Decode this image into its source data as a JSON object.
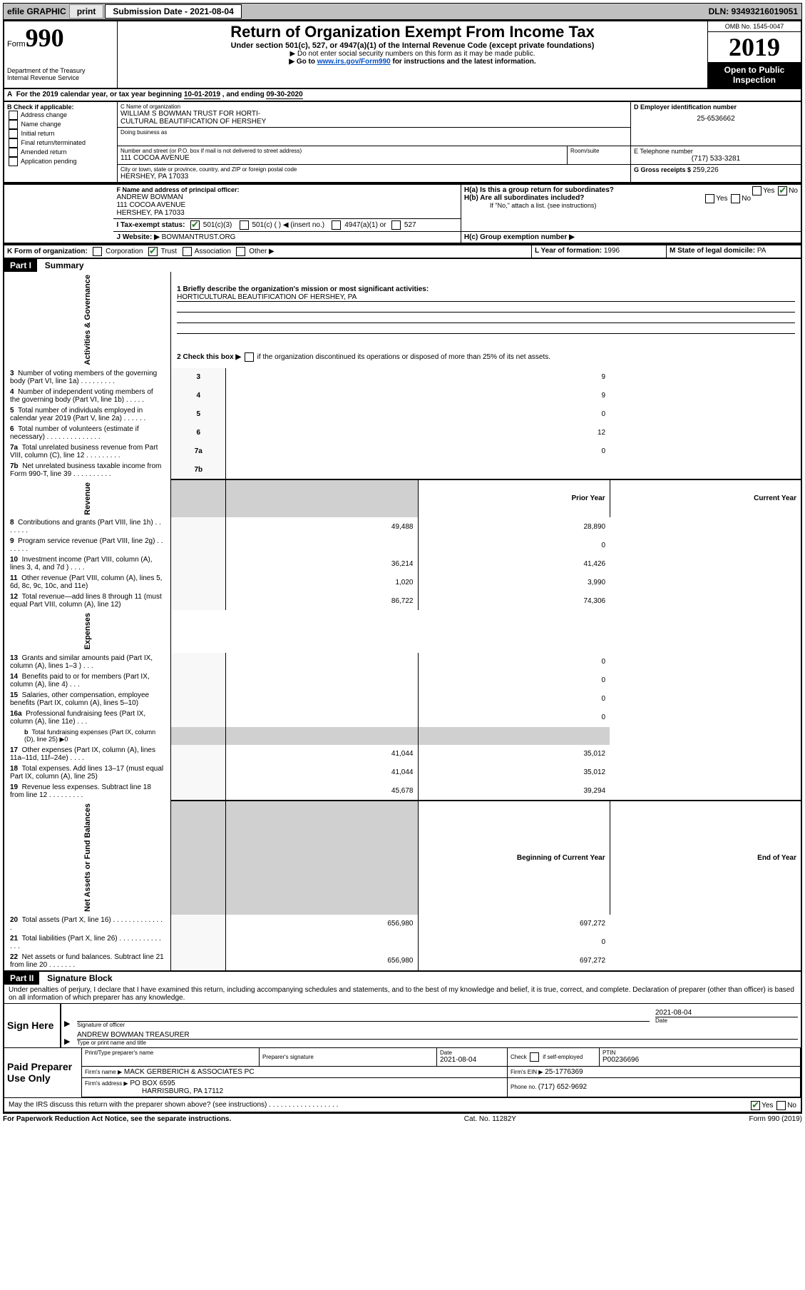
{
  "header_bar": {
    "efile_label": "efile GRAPHIC",
    "print_btn": "print",
    "submission_label": "Submission Date - 2021-08-04",
    "dln_label": "DLN: 93493216019051"
  },
  "top": {
    "form_prefix": "Form",
    "form_number": "990",
    "dept": "Department of the Treasury",
    "irs": "Internal Revenue Service",
    "title": "Return of Organization Exempt From Income Tax",
    "subtitle": "Under section 501(c), 527, or 4947(a)(1) of the Internal Revenue Code (except private foundations)",
    "note1": "▶ Do not enter social security numbers on this form as it may be made public.",
    "note2_prefix": "▶ Go to ",
    "note2_link": "www.irs.gov/Form990",
    "note2_suffix": " for instructions and the latest information.",
    "omb": "OMB No. 1545-0047",
    "year": "2019",
    "open_public": "Open to Public Inspection"
  },
  "periodA": {
    "text_prefix": "For the 2019 calendar year, or tax year beginning ",
    "begin": "10-01-2019",
    "mid": "  , and ending ",
    "end": "09-30-2020"
  },
  "boxB": {
    "label": "B Check if applicable:",
    "items": [
      "Address change",
      "Name change",
      "Initial return",
      "Final return/terminated",
      "Amended return",
      "Application pending"
    ]
  },
  "boxC": {
    "name_label": "C Name of organization",
    "name1": "WILLIAM S BOWMAN TRUST FOR HORTI-",
    "name2": "CULTURAL BEAUTIFICATION OF HERSHEY",
    "dba_label": "Doing business as",
    "street_label": "Number and street (or P.O. box if mail is not delivered to street address)",
    "room_label": "Room/suite",
    "street": "111 COCOA AVENUE",
    "city_label": "City or town, state or province, country, and ZIP or foreign postal code",
    "city": "HERSHEY, PA  17033"
  },
  "boxD": {
    "label": "D Employer identification number",
    "ein": "25-6536662"
  },
  "boxE": {
    "label": "E Telephone number",
    "phone": "(717) 533-3281"
  },
  "boxG": {
    "label": "G Gross receipts $ ",
    "value": "259,226"
  },
  "boxF": {
    "label": "F  Name and address of principal officer:",
    "name": "ANDREW BOWMAN",
    "addr1": "111 COCOA AVENUE",
    "addr2": "HERSHEY, PA  17033"
  },
  "boxH": {
    "a_label": "H(a)  Is this a group return for subordinates?",
    "b_label": "H(b)  Are all subordinates included?",
    "b_note": "If \"No,\" attach a list. (see instructions)",
    "c_label": "H(c)  Group exemption number ▶",
    "yes": "Yes",
    "no": "No"
  },
  "boxI": {
    "label": "I  Tax-exempt status:",
    "c3": "501(c)(3)",
    "c_other": "501(c) (  ) ◀ (insert no.)",
    "a4947": "4947(a)(1) or",
    "s527": "527"
  },
  "boxJ": {
    "label": "J  Website: ▶",
    "value": "BOWMANTRUST.ORG"
  },
  "boxK": {
    "label": "K Form of organization:",
    "corp": "Corporation",
    "trust": "Trust",
    "assoc": "Association",
    "other": "Other ▶"
  },
  "boxL": {
    "label": "L Year of formation: ",
    "value": "1996"
  },
  "boxM": {
    "label": "M State of legal domicile: ",
    "value": "PA"
  },
  "part1": {
    "header": "Part I",
    "title": "Summary",
    "line1_label": "1   Briefly describe the organization's mission or most significant activities:",
    "line1_value": "HORTICULTURAL BEAUTIFICATION OF HERSHEY, PA",
    "line2_label": "2   Check this box ▶",
    "line2_suffix": " if the organization discontinued its operations or disposed of more than 25% of its net assets.",
    "sections": {
      "gov": "Activities & Governance",
      "rev": "Revenue",
      "exp": "Expenses",
      "net": "Net Assets or Fund Balances"
    },
    "gov_rows": [
      {
        "n": "3",
        "label": "Number of voting members of the governing body (Part VI, line 1a)   .   .   .   .   .   .   .   .   .",
        "val": "9"
      },
      {
        "n": "4",
        "label": "Number of independent voting members of the governing body (Part VI, line 1b)   .   .   .   .   .",
        "val": "9"
      },
      {
        "n": "5",
        "label": "Total number of individuals employed in calendar year 2019 (Part V, line 2a)   .   .   .   .   .   .",
        "val": "0"
      },
      {
        "n": "6",
        "label": "Total number of volunteers (estimate if necessary)   .   .   .   .   .   .   .   .   .   .   .   .   .   .",
        "val": "12"
      },
      {
        "n": "7a",
        "label": "Total unrelated business revenue from Part VIII, column (C), line 12   .   .   .   .   .   .   .   .   .",
        "val": "0"
      },
      {
        "n": "7b",
        "label": "Net unrelated business taxable income from Form 990-T, line 39   .   .   .   .   .   .   .   .   .   .",
        "val": ""
      }
    ],
    "col_prior": "Prior Year",
    "col_current": "Current Year",
    "col_begin": "Beginning of Current Year",
    "col_end": "End of Year",
    "rev_rows": [
      {
        "n": "8",
        "label": "Contributions and grants (Part VIII, line 1h)   .   .   .   .   .   .   .",
        "p": "49,488",
        "c": "28,890"
      },
      {
        "n": "9",
        "label": "Program service revenue (Part VIII, line 2g)   .   .   .   .   .   .   .",
        "p": "",
        "c": "0"
      },
      {
        "n": "10",
        "label": "Investment income (Part VIII, column (A), lines 3, 4, and 7d )   .   .   .   .",
        "p": "36,214",
        "c": "41,426"
      },
      {
        "n": "11",
        "label": "Other revenue (Part VIII, column (A), lines 5, 6d, 8c, 9c, 10c, and 11e)",
        "p": "1,020",
        "c": "3,990"
      },
      {
        "n": "12",
        "label": "Total revenue—add lines 8 through 11 (must equal Part VIII, column (A), line 12)",
        "p": "86,722",
        "c": "74,306"
      }
    ],
    "exp_rows": [
      {
        "n": "13",
        "label": "Grants and similar amounts paid (Part IX, column (A), lines 1–3 )   .   .   .",
        "p": "",
        "c": "0"
      },
      {
        "n": "14",
        "label": "Benefits paid to or for members (Part IX, column (A), line 4)   .   .   .",
        "p": "",
        "c": "0"
      },
      {
        "n": "15",
        "label": "Salaries, other compensation, employee benefits (Part IX, column (A), lines 5–10)",
        "p": "",
        "c": "0"
      },
      {
        "n": "16a",
        "label": "Professional fundraising fees (Part IX, column (A), line 11e)   .   .   .",
        "p": "",
        "c": "0"
      },
      {
        "n": "b",
        "label": "Total fundraising expenses (Part IX, column (D), line 25) ▶0",
        "p": "GRAY",
        "c": "GRAY",
        "sub": true
      },
      {
        "n": "17",
        "label": "Other expenses (Part IX, column (A), lines 11a–11d, 11f–24e)   .   .   .   .",
        "p": "41,044",
        "c": "35,012"
      },
      {
        "n": "18",
        "label": "Total expenses. Add lines 13–17 (must equal Part IX, column (A), line 25)",
        "p": "41,044",
        "c": "35,012"
      },
      {
        "n": "19",
        "label": "Revenue less expenses. Subtract line 18 from line 12   .   .   .   .   .   .   .   .   .",
        "p": "45,678",
        "c": "39,294"
      }
    ],
    "net_rows": [
      {
        "n": "20",
        "label": "Total assets (Part X, line 16)   .   .   .   .   .   .   .   .   .   .   .   .   .   .",
        "p": "656,980",
        "c": "697,272"
      },
      {
        "n": "21",
        "label": "Total liabilities (Part X, line 26)   .   .   .   .   .   .   .   .   .   .   .   .   .   .",
        "p": "",
        "c": "0"
      },
      {
        "n": "22",
        "label": "Net assets or fund balances. Subtract line 21 from line 20   .   .   .   .   .   .   .",
        "p": "656,980",
        "c": "697,272"
      }
    ]
  },
  "part2": {
    "header": "Part II",
    "title": "Signature Block",
    "declaration": "Under penalties of perjury, I declare that I have examined this return, including accompanying schedules and statements, and to the best of my knowledge and belief, it is true, correct, and complete. Declaration of preparer (other than officer) is based on all information of which preparer has any knowledge.",
    "sign_here": "Sign Here",
    "sig_officer": "Signature of officer",
    "sig_date_label": "Date",
    "sig_date": "2021-08-04",
    "officer_name": "ANDREW BOWMAN  TREASURER",
    "officer_type_label": "Type or print name and title",
    "paid": "Paid Preparer Use Only",
    "print_name_label": "Print/Type preparer's name",
    "prep_sig_label": "Preparer's signature",
    "prep_date_label": "Date",
    "prep_date": "2021-08-04",
    "check_self": "Check",
    "self_emp": "if self-employed",
    "ptin_label": "PTIN",
    "ptin": "P00236696",
    "firm_name_label": "Firm's name   ▶",
    "firm_name": "MACK GERBERICH & ASSOCIATES PC",
    "firm_ein_label": "Firm's EIN ▶",
    "firm_ein": "25-1776369",
    "firm_addr_label": "Firm's address ▶",
    "firm_addr1": "PO BOX 6595",
    "firm_addr2": "HARRISBURG, PA  17112",
    "phone_label": "Phone no. ",
    "phone": "(717) 652-9692",
    "discuss": "May the IRS discuss this return with the preparer shown above? (see instructions)   .   .   .   .   .   .   .   .   .   .   .   .   .   .   .   .   .   ."
  },
  "footer": {
    "left": "For Paperwork Reduction Act Notice, see the separate instructions.",
    "mid": "Cat. No. 11282Y",
    "right": "Form 990 (2019)"
  }
}
